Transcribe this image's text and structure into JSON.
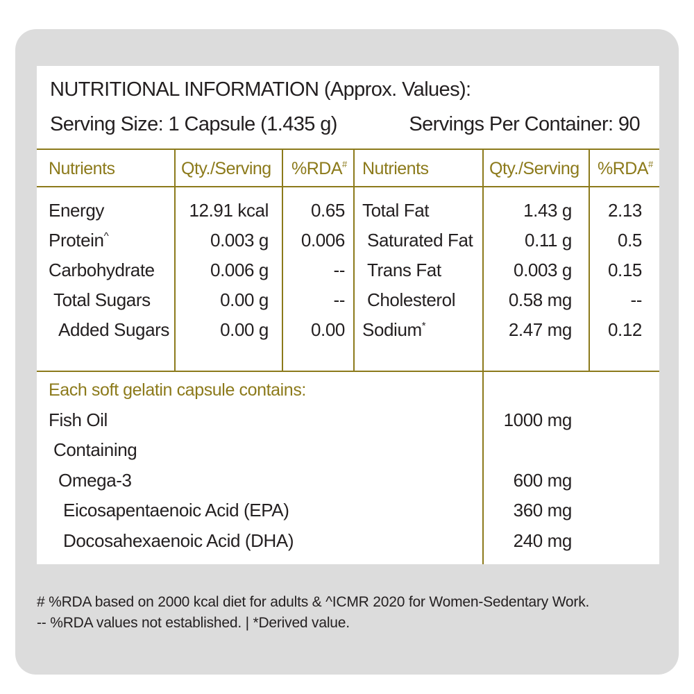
{
  "header": {
    "title": "NUTRITIONAL INFORMATION (Approx. Values):",
    "serving_size": "Serving Size: 1 Capsule (1.435 g)",
    "servings_per_container": "Servings Per Container: 90"
  },
  "columns": {
    "nutrients": "Nutrients",
    "qty": "Qty./Serving",
    "rda": "%RDA",
    "rda_mark": "#"
  },
  "left_rows": [
    {
      "name": "Energy",
      "mark": "",
      "qty": "12.91 kcal",
      "rda": "0.65"
    },
    {
      "name": "Protein",
      "mark": "^",
      "qty": "0.003 g",
      "rda": "0.006"
    },
    {
      "name": "Carbohydrate",
      "mark": "",
      "qty": "0.006 g",
      "rda": "--"
    },
    {
      "name": "Total Sugars",
      "mark": "",
      "qty": "0.00 g",
      "rda": "--"
    },
    {
      "name": "Added Sugars",
      "mark": "",
      "qty": "0.00 g",
      "rda": "0.00"
    }
  ],
  "right_rows": [
    {
      "name": "Total Fat",
      "mark": "",
      "qty": "1.43 g",
      "rda": "2.13"
    },
    {
      "name": "Saturated Fat",
      "mark": "",
      "qty": "0.11 g",
      "rda": "0.5"
    },
    {
      "name": "Trans Fat",
      "mark": "",
      "qty": "0.003 g",
      "rda": "0.15"
    },
    {
      "name": "Cholesterol",
      "mark": "",
      "qty": "0.58 mg",
      "rda": "--"
    },
    {
      "name": "Sodium",
      "mark": "*",
      "qty": "2.47 mg",
      "rda": "0.12"
    }
  ],
  "capsule": {
    "heading": "Each soft gelatin capsule contains:",
    "rows": [
      {
        "name": "Fish Oil",
        "qty": "1000 mg"
      },
      {
        "name": "Containing",
        "qty": ""
      },
      {
        "name": "Omega-3",
        "qty": "600 mg"
      },
      {
        "name": "Eicosapentaenoic Acid (EPA)",
        "qty": "360 mg"
      },
      {
        "name": "Docosahexaenoic Acid (DHA)",
        "qty": "240 mg"
      }
    ]
  },
  "footnotes": {
    "line1": "# %RDA based on 2000 kcal diet for adults & ^ICMR 2020 for Women-Sedentary Work.",
    "line2": "-- %RDA values not established.  |  *Derived value."
  },
  "colors": {
    "accent": "#8c7a1b",
    "card_background": "#dcdcdc",
    "panel_background": "#ffffff",
    "text": "#231f20"
  }
}
